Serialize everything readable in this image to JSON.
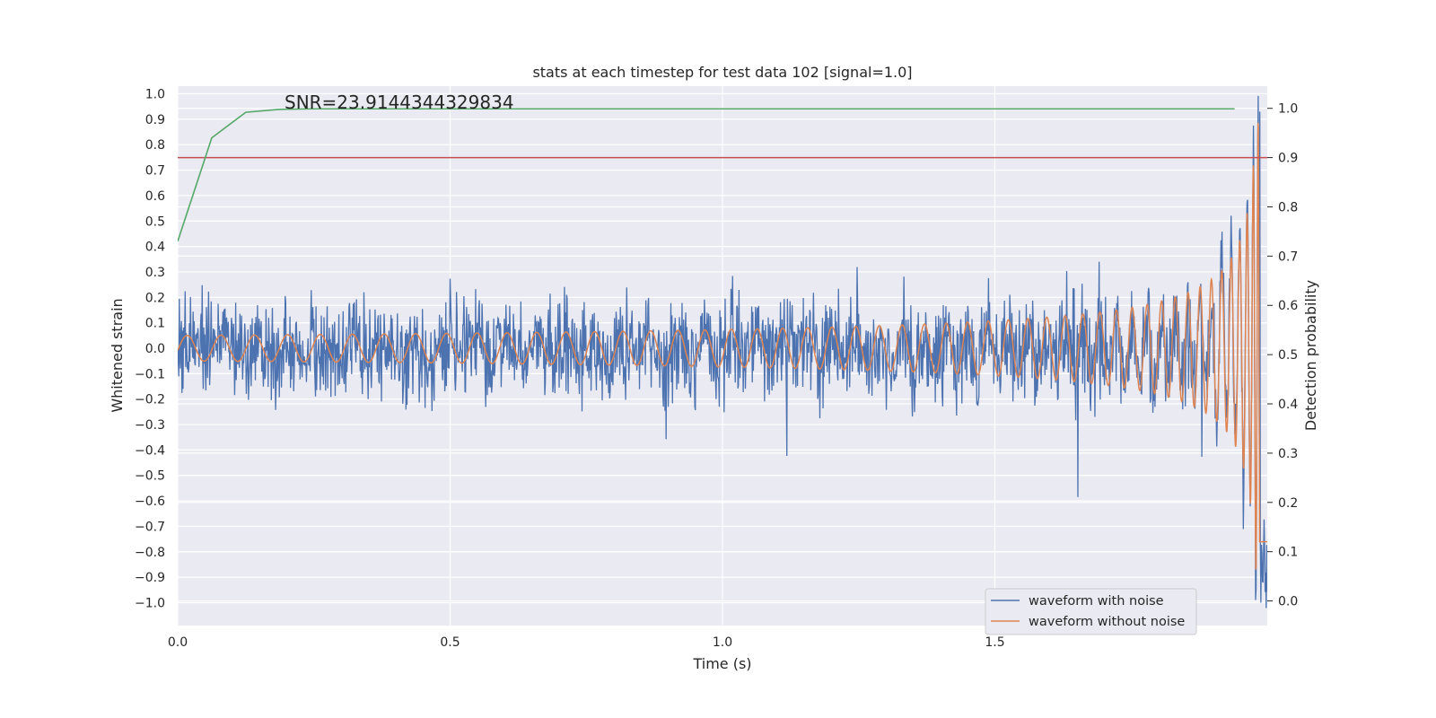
{
  "chart_data": {
    "type": "line",
    "title": "stats at each timestep for test data 102 [signal=1.0]",
    "xlabel": "Time (s)",
    "ylabel": "Whitened strain",
    "y2label": "Detection probability",
    "annotation": "SNR=23.9144344329834",
    "xlim": [
      0.0,
      2.0
    ],
    "ylim": [
      -1.09,
      1.03
    ],
    "y2lim": [
      -0.05,
      1.045
    ],
    "xticks": [
      "0.0",
      "0.5",
      "1.0",
      "1.5"
    ],
    "yticks": [
      "−1.0",
      "−0.9",
      "−0.8",
      "−0.7",
      "−0.6",
      "−0.5",
      "−0.4",
      "−0.3",
      "−0.2",
      "−0.1",
      "0.0",
      "0.1",
      "0.2",
      "0.3",
      "0.4",
      "0.5",
      "0.6",
      "0.7",
      "0.8",
      "0.9",
      "1.0"
    ],
    "y2ticks": [
      "0.0",
      "0.1",
      "0.2",
      "0.3",
      "0.4",
      "0.5",
      "0.6",
      "0.7",
      "0.8",
      "0.9",
      "1.0"
    ],
    "grid": true,
    "legend_position": "lower-right",
    "colors": {
      "background": "#eaeaf2",
      "grid": "#ffffff",
      "noisy": "#4c72b0",
      "clean": "#dd8452",
      "probability": "#55a868",
      "threshold": "#c44e52"
    },
    "series": [
      {
        "name": "waveform with noise",
        "axis": "left",
        "style": "dense noisy strain, amplitude about ±0.5, rising near merger",
        "y_extremes": [
          -1.0,
          0.93
        ]
      },
      {
        "name": "waveform without noise",
        "axis": "left",
        "style": "chirp: sinusoid with rising frequency and amplitude",
        "amplitude_start": 0.05,
        "amplitude_end": 0.9,
        "t_merger": 1.99
      },
      {
        "axis": "right",
        "x": [
          0.0,
          0.0625,
          0.125,
          0.1875,
          0.25,
          0.375,
          0.5,
          0.75,
          1.0,
          1.25,
          1.5,
          1.75,
          1.94
        ],
        "values": [
          0.73,
          0.94,
          0.992,
          0.998,
          0.999,
          0.999,
          0.999,
          0.999,
          0.999,
          0.999,
          0.999,
          0.999,
          0.999
        ]
      },
      {
        "axis": "right",
        "style": "horizontal line",
        "x": [
          0.0,
          2.0
        ],
        "values": [
          0.9,
          0.9
        ]
      }
    ]
  }
}
